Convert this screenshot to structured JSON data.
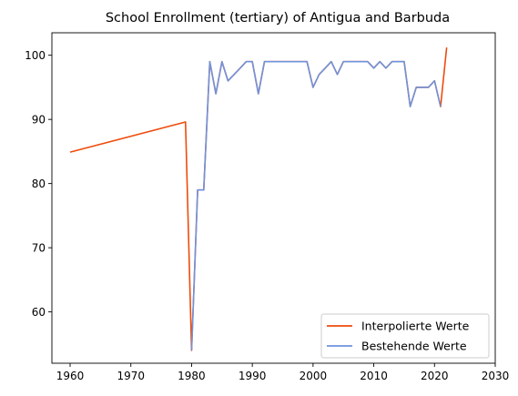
{
  "chart_data": {
    "type": "line",
    "title": "School Enrollment (tertiary) of Antigua and Barbuda",
    "xlabel": "",
    "ylabel": "",
    "xlim": [
      1957,
      2030
    ],
    "ylim": [
      52,
      103.5
    ],
    "xticks": [
      1960,
      1970,
      1980,
      1990,
      2000,
      2010,
      2020,
      2030
    ],
    "yticks": [
      60,
      70,
      80,
      90,
      100
    ],
    "grid": false,
    "legend_position": "bottom-right",
    "series": [
      {
        "name": "Interpolierte Werte",
        "color": "#ee4b0b",
        "x": [
          1960,
          1979,
          1980,
          1981,
          1982,
          1983,
          1984,
          1985,
          1986,
          1987,
          1988,
          1989,
          1990,
          1991,
          1992,
          1993,
          1994,
          1995,
          1996,
          1997,
          1998,
          1999,
          2000,
          2001,
          2002,
          2003,
          2004,
          2005,
          2006,
          2007,
          2008,
          2009,
          2010,
          2011,
          2012,
          2013,
          2014,
          2015,
          2016,
          2017,
          2018,
          2019,
          2020,
          2021,
          2022
        ],
        "y": [
          84.9,
          89.6,
          54,
          79,
          79,
          99,
          94,
          99,
          96,
          97,
          98,
          99,
          99,
          94,
          99,
          99,
          99,
          99,
          99,
          99,
          99,
          99,
          95,
          97,
          98,
          99,
          97,
          99,
          99,
          99,
          99,
          99,
          98,
          99,
          98,
          99,
          99,
          99,
          92,
          95,
          95,
          95,
          96,
          92,
          101.2
        ]
      },
      {
        "name": "Bestehende Werte",
        "color": "#6f93dc",
        "x": [
          1980,
          1981,
          1982,
          1983,
          1984,
          1985,
          1986,
          1987,
          1988,
          1989,
          1990,
          1991,
          1992,
          1993,
          1994,
          1995,
          1996,
          1997,
          1998,
          1999,
          2000,
          2001,
          2002,
          2003,
          2004,
          2005,
          2006,
          2007,
          2008,
          2009,
          2010,
          2011,
          2012,
          2013,
          2014,
          2015,
          2016,
          2017,
          2018,
          2019,
          2020,
          2021
        ],
        "y": [
          54,
          79,
          79,
          99,
          94,
          99,
          96,
          97,
          98,
          99,
          99,
          94,
          99,
          99,
          99,
          99,
          99,
          99,
          99,
          99,
          95,
          97,
          98,
          99,
          97,
          99,
          99,
          99,
          99,
          99,
          98,
          99,
          98,
          99,
          99,
          99,
          92,
          95,
          95,
          95,
          96,
          92
        ]
      }
    ]
  }
}
